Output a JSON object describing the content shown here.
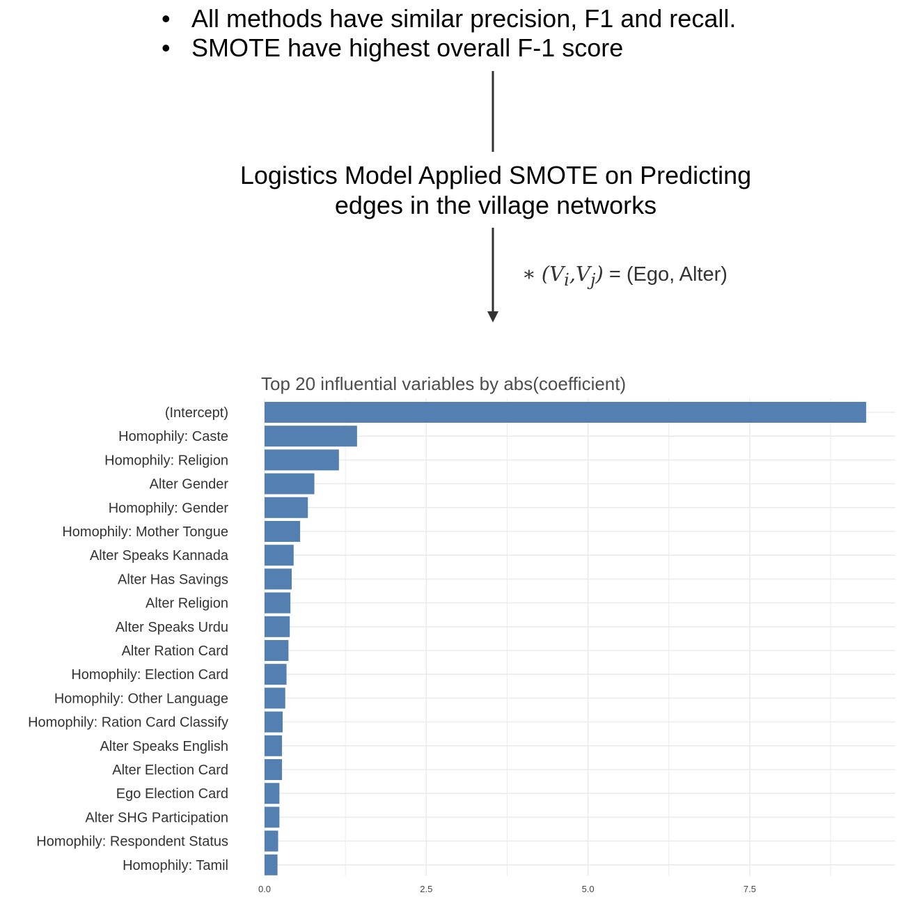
{
  "bullets": [
    "All methods have similar precision, F1 and recall.",
    "SMOTE have highest overall F-1 score"
  ],
  "model_title": {
    "line1": "Logistics Model Applied SMOTE on Predicting",
    "line2": "edges in the village networks"
  },
  "notation": {
    "star": "∗",
    "open": "(",
    "v1": "V",
    "sub1": "i",
    "comma": ",",
    "v2": "V",
    "sub2": "j",
    "close": ")",
    "rhs": " = (Ego, Alter)"
  },
  "colors": {
    "bar": "#5380B0",
    "grid": "#EBEBEB",
    "arrow": "#333333"
  },
  "chart_data": {
    "type": "bar",
    "orientation": "horizontal",
    "title": "Top 20 influential variables by abs(coefficient)",
    "xlabel": "",
    "ylabel": "",
    "xlim": [
      0,
      9.75
    ],
    "x_ticks": [
      0,
      2.5,
      5,
      7.5
    ],
    "x_tick_labels": [
      "0.0",
      "2.5",
      "5.0",
      "7.5"
    ],
    "grid": true,
    "categories": [
      "(Intercept)",
      "Homophily: Caste",
      "Homophily: Religion",
      "Alter Gender",
      "Homophily: Gender",
      "Homophily: Mother Tongue",
      "Alter Speaks Kannada",
      "Alter Has Savings",
      "Alter Religion",
      "Alter Speaks Urdu",
      "Alter Ration Card",
      "Homophily: Election Card",
      "Homophily: Other Language",
      "Homophily: Ration Card Classify",
      "Alter Speaks English",
      "Alter Election Card",
      "Ego Election Card",
      "Alter SHG Participation",
      "Homophily: Respondent Status",
      "Homophily: Tamil"
    ],
    "values": [
      9.3,
      1.43,
      1.15,
      0.77,
      0.67,
      0.55,
      0.45,
      0.42,
      0.4,
      0.39,
      0.37,
      0.34,
      0.32,
      0.28,
      0.27,
      0.27,
      0.23,
      0.23,
      0.21,
      0.2
    ]
  }
}
